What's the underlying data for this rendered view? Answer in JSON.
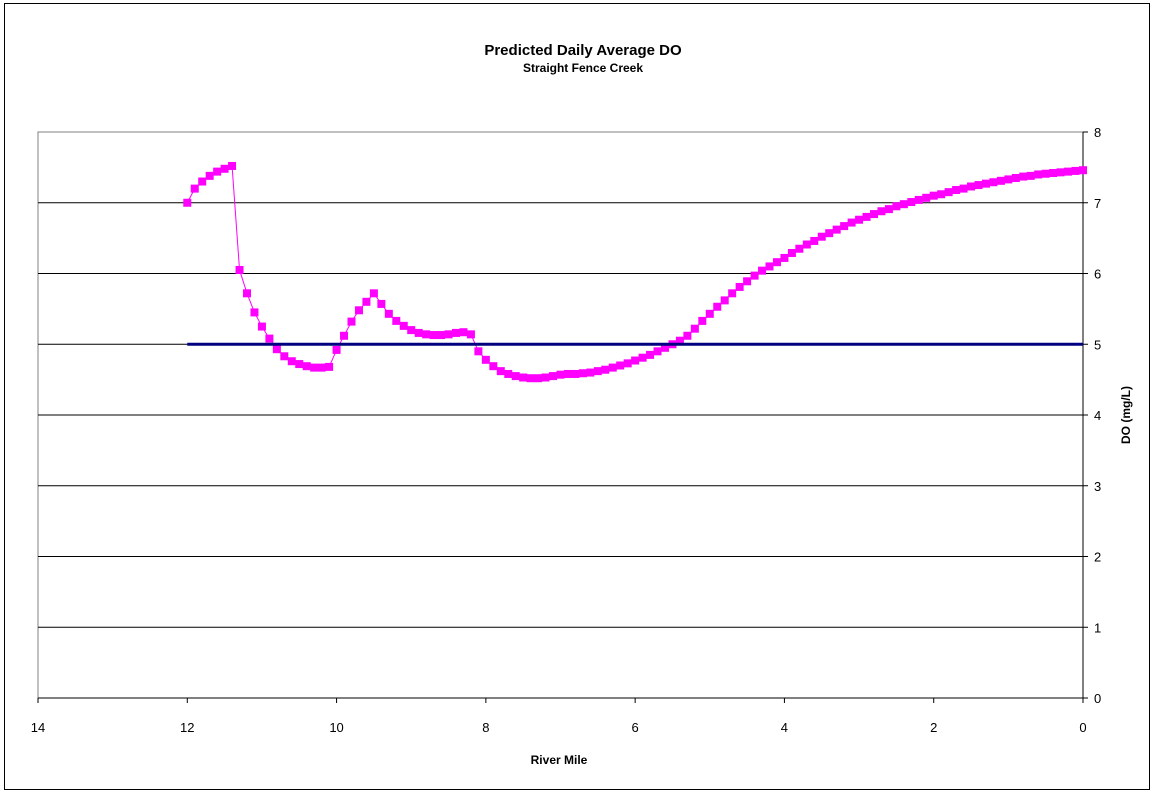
{
  "chart_data": {
    "type": "line",
    "title": "Predicted Daily Average DO",
    "subtitle": "Straight Fence Creek",
    "xlabel": "River Mile",
    "ylabel": "DO (mg/L)",
    "xlim": [
      14,
      0
    ],
    "ylim": [
      0,
      8
    ],
    "x_reversed": true,
    "y_axis_side": "right",
    "x_ticks": [
      "14",
      "12",
      "10",
      "8",
      "6",
      "4",
      "2",
      "0"
    ],
    "y_ticks": [
      "0",
      "1",
      "2",
      "3",
      "4",
      "5",
      "6",
      "7",
      "8"
    ],
    "grid": "horizontal",
    "legend": "none",
    "series": [
      {
        "color": "#FF00FF",
        "marker": "square",
        "x": [
          12.0,
          11.9,
          11.8,
          11.7,
          11.6,
          11.5,
          11.4,
          11.3,
          11.2,
          11.1,
          11.0,
          10.9,
          10.8,
          10.7,
          10.6,
          10.5,
          10.4,
          10.3,
          10.2,
          10.1,
          10.0,
          9.9,
          9.8,
          9.7,
          9.6,
          9.5,
          9.4,
          9.3,
          9.2,
          9.1,
          9.0,
          8.9,
          8.8,
          8.7,
          8.6,
          8.5,
          8.4,
          8.3,
          8.2,
          8.1,
          8.0,
          7.9,
          7.8,
          7.7,
          7.6,
          7.5,
          7.4,
          7.3,
          7.2,
          7.1,
          7.0,
          6.9,
          6.8,
          6.7,
          6.6,
          6.5,
          6.4,
          6.3,
          6.2,
          6.1,
          6.0,
          5.9,
          5.8,
          5.7,
          5.6,
          5.5,
          5.4,
          5.3,
          5.2,
          5.1,
          5.0,
          4.9,
          4.8,
          4.7,
          4.6,
          4.5,
          4.4,
          4.3,
          4.2,
          4.1,
          4.0,
          3.9,
          3.8,
          3.7,
          3.6,
          3.5,
          3.4,
          3.3,
          3.2,
          3.1,
          3.0,
          2.9,
          2.8,
          2.7,
          2.6,
          2.5,
          2.4,
          2.3,
          2.2,
          2.1,
          2.0,
          1.9,
          1.8,
          1.7,
          1.6,
          1.5,
          1.4,
          1.3,
          1.2,
          1.1,
          1.0,
          0.9,
          0.8,
          0.7,
          0.6,
          0.5,
          0.4,
          0.3,
          0.2,
          0.1,
          0.0
        ],
        "y": [
          7.0,
          7.2,
          7.3,
          7.38,
          7.44,
          7.48,
          7.52,
          6.05,
          5.72,
          5.45,
          5.25,
          5.08,
          4.93,
          4.83,
          4.76,
          4.72,
          4.69,
          4.67,
          4.67,
          4.68,
          4.92,
          5.12,
          5.32,
          5.48,
          5.6,
          5.72,
          5.57,
          5.43,
          5.33,
          5.26,
          5.2,
          5.16,
          5.14,
          5.13,
          5.13,
          5.14,
          5.16,
          5.17,
          5.14,
          4.9,
          4.78,
          4.69,
          4.62,
          4.58,
          4.55,
          4.53,
          4.52,
          4.52,
          4.53,
          4.55,
          4.57,
          4.58,
          4.58,
          4.59,
          4.6,
          4.62,
          4.64,
          4.67,
          4.7,
          4.73,
          4.77,
          4.81,
          4.85,
          4.9,
          4.95,
          5.0,
          5.05,
          5.12,
          5.22,
          5.33,
          5.43,
          5.53,
          5.62,
          5.72,
          5.81,
          5.89,
          5.97,
          6.04,
          6.1,
          6.16,
          6.22,
          6.29,
          6.35,
          6.41,
          6.46,
          6.52,
          6.57,
          6.62,
          6.67,
          6.72,
          6.76,
          6.8,
          6.84,
          6.88,
          6.91,
          6.95,
          6.98,
          7.01,
          7.04,
          7.07,
          7.1,
          7.12,
          7.15,
          7.18,
          7.2,
          7.23,
          7.25,
          7.27,
          7.29,
          7.31,
          7.33,
          7.35,
          7.37,
          7.38,
          7.4,
          7.41,
          7.42,
          7.43,
          7.44,
          7.45,
          7.46
        ]
      },
      {
        "color": "#000080",
        "marker": "none",
        "x": [
          12,
          0
        ],
        "y": [
          5,
          5
        ]
      }
    ]
  }
}
